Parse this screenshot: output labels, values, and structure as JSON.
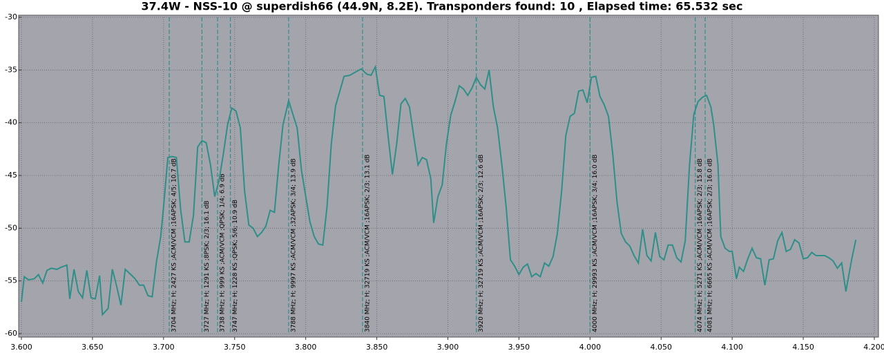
{
  "chart_data": {
    "type": "line",
    "title": "37.4W - NSS-10  @ superdish66 (44.9N, 8.2E). Transponders found: 10 , Elapsed time: 65.532 sec",
    "x": [
      3.6,
      3.602,
      3.605,
      3.609,
      3.612,
      3.615,
      3.618,
      3.621,
      3.625,
      3.628,
      3.632,
      3.634,
      3.637,
      3.64,
      3.643,
      3.646,
      3.649,
      3.652,
      3.655,
      3.657,
      3.661,
      3.664,
      3.667,
      3.67,
      3.673,
      3.677,
      3.68,
      3.683,
      3.686,
      3.689,
      3.692,
      3.695,
      3.698,
      3.7,
      3.703,
      3.706,
      3.709,
      3.712,
      3.715,
      3.718,
      3.721,
      3.724,
      3.727,
      3.73,
      3.733,
      3.736,
      3.739,
      3.742,
      3.745,
      3.748,
      3.751,
      3.754,
      3.757,
      3.76,
      3.763,
      3.766,
      3.769,
      3.772,
      3.775,
      3.778,
      3.781,
      3.784,
      3.788,
      3.791,
      3.794,
      3.797,
      3.8,
      3.803,
      3.806,
      3.809,
      3.812,
      3.815,
      3.818,
      3.821,
      3.824,
      3.827,
      3.831,
      3.835,
      3.839,
      3.843,
      3.846,
      3.849,
      3.852,
      3.855,
      3.858,
      3.861,
      3.864,
      3.867,
      3.87,
      3.873,
      3.876,
      3.879,
      3.882,
      3.885,
      3.888,
      3.89,
      3.893,
      3.896,
      3.899,
      3.902,
      3.905,
      3.908,
      3.911,
      3.914,
      3.917,
      3.92,
      3.923,
      3.926,
      3.929,
      3.932,
      3.935,
      3.938,
      3.941,
      3.944,
      3.947,
      3.95,
      3.953,
      3.956,
      3.959,
      3.962,
      3.965,
      3.968,
      3.971,
      3.974,
      3.977,
      3.98,
      3.983,
      3.986,
      3.989,
      3.992,
      3.995,
      3.998,
      4.001,
      4.004,
      4.007,
      4.01,
      4.013,
      4.016,
      4.019,
      4.022,
      4.025,
      4.028,
      4.031,
      4.034,
      4.037,
      4.04,
      4.043,
      4.046,
      4.049,
      4.052,
      4.055,
      4.058,
      4.061,
      4.064,
      4.067,
      4.07,
      4.073,
      4.076,
      4.079,
      4.082,
      4.085,
      4.087,
      4.09,
      4.092,
      4.095,
      4.098,
      4.1,
      4.103,
      4.105,
      4.108,
      4.111,
      4.114,
      4.117,
      4.12,
      4.123,
      4.126,
      4.129,
      4.132,
      4.135,
      4.138,
      4.141,
      4.144,
      4.147,
      4.15,
      4.153,
      4.156,
      4.159,
      4.162,
      4.165,
      4.168,
      4.171,
      4.174,
      4.177,
      4.18,
      4.184,
      4.187
    ],
    "series": [
      {
        "color": "#2e8f88",
        "values": [
          -57.0,
          -54.6,
          -54.9,
          -54.8,
          -54.4,
          -55.2,
          -54.0,
          -53.8,
          -53.9,
          -53.7,
          -53.5,
          -56.7,
          -53.9,
          -56.0,
          -56.6,
          -54.0,
          -56.6,
          -56.7,
          -54.5,
          -58.2,
          -57.6,
          -53.9,
          -55.5,
          -57.3,
          -53.9,
          -54.4,
          -54.8,
          -55.4,
          -55.4,
          -56.4,
          -56.5,
          -53.2,
          -50.8,
          -48.0,
          -43.3,
          -43.2,
          -43.3,
          -48.2,
          -51.3,
          -51.3,
          -48.8,
          -42.3,
          -41.7,
          -41.9,
          -44.0,
          -47.0,
          -45.5,
          -43.0,
          -40.2,
          -38.6,
          -38.9,
          -40.5,
          -46.5,
          -49.7,
          -50.0,
          -50.8,
          -50.4,
          -49.8,
          -48.3,
          -48.5,
          -44.0,
          -40.2,
          -37.9,
          -39.2,
          -40.5,
          -44.5,
          -47.0,
          -49.4,
          -50.8,
          -51.5,
          -51.6,
          -48.0,
          -42.0,
          -38.4,
          -37.0,
          -35.6,
          -35.5,
          -35.2,
          -34.9,
          -35.4,
          -35.5,
          -34.7,
          -37.4,
          -37.5,
          -41.3,
          -44.9,
          -42.0,
          -38.2,
          -37.7,
          -38.5,
          -41.3,
          -44.0,
          -43.3,
          -43.5,
          -45.3,
          -49.5,
          -47.0,
          -45.9,
          -42.0,
          -39.3,
          -38.0,
          -36.5,
          -36.8,
          -37.4,
          -36.7,
          -35.7,
          -36.4,
          -36.8,
          -35.0,
          -38.5,
          -40.5,
          -44.0,
          -48.0,
          -53.0,
          -53.6,
          -54.4,
          -53.7,
          -53.4,
          -54.6,
          -54.3,
          -54.6,
          -53.3,
          -53.6,
          -52.7,
          -50.5,
          -46.5,
          -41.2,
          -39.4,
          -39.1,
          -37.0,
          -36.9,
          -38.1,
          -35.7,
          -35.6,
          -37.5,
          -38.3,
          -39.4,
          -43.0,
          -47.5,
          -50.5,
          -51.3,
          -51.7,
          -52.6,
          -53.3,
          -50.1,
          -52.6,
          -53.1,
          -50.4,
          -52.7,
          -53.0,
          -51.6,
          -51.6,
          -52.8,
          -53.2,
          -51.2,
          -44.0,
          -39.2,
          -38.0,
          -37.6,
          -37.4,
          -38.5,
          -40.2,
          -44.0,
          -50.8,
          -51.9,
          -52.2,
          -52.2,
          -54.8,
          -53.7,
          -54.1,
          -52.9,
          -51.9,
          -52.8,
          -52.9,
          -55.4,
          -53.0,
          -52.9,
          -51.2,
          -50.4,
          -52.2,
          -52.0,
          -51.1,
          -51.4,
          -52.9,
          -52.8,
          -52.3,
          -52.6,
          -52.6,
          -52.6,
          -52.8,
          -53.1,
          -53.8,
          -53.3,
          -56.0,
          -53.0,
          -51.1
        ]
      }
    ],
    "xlim": [
      3.6,
      4.2
    ],
    "ylim": [
      -60,
      -30
    ],
    "xticks": [
      {
        "value": 3.6,
        "label": "3.600"
      },
      {
        "value": 3.65,
        "label": "3.650"
      },
      {
        "value": 3.7,
        "label": "3.700"
      },
      {
        "value": 3.75,
        "label": "3.750"
      },
      {
        "value": 3.8,
        "label": "3.800"
      },
      {
        "value": 3.85,
        "label": "3.850"
      },
      {
        "value": 3.9,
        "label": "3.900"
      },
      {
        "value": 3.95,
        "label": "3.950"
      },
      {
        "value": 4.0,
        "label": "4.000"
      },
      {
        "value": 4.05,
        "label": "4.050"
      },
      {
        "value": 4.1,
        "label": "4.100"
      },
      {
        "value": 4.15,
        "label": "4.150"
      },
      {
        "value": 4.2,
        "label": "4.200"
      }
    ],
    "yticks": [
      -30,
      -35,
      -40,
      -45,
      -50,
      -55,
      -60
    ],
    "grid": true,
    "markers": [
      {
        "x": 3.704,
        "label": "3704 MHz; H; 2427 KS ;ACM/VCM ;16APSK; 4/5; 10.7 dB"
      },
      {
        "x": 3.727,
        "label": "3727 MHz; H; 1291 KS ;8PSK; 2/3; 16.1 dB"
      },
      {
        "x": 3.738,
        "label": "3738 MHz; H; 999 KS ;ACM/VCM ;QPSK; 1/4; 6.9 dB"
      },
      {
        "x": 3.747,
        "label": "3747 MHz; H; 1228 KS ;QPSK; 5/6; 10.9 dB"
      },
      {
        "x": 3.788,
        "label": "3788 MHz; H; 9997 KS ;ACM/VCM ;32APSK; 3/4; 13.9 dB"
      },
      {
        "x": 3.84,
        "label": "3840 MHz; H; 32719 KS ;ACM/VCM ;16APSK; 2/3; 13.1 dB"
      },
      {
        "x": 3.92,
        "label": "3920 MHz; H; 32719 KS ;ACM/VCM ;16APSK; 2/3; 12.6 dB"
      },
      {
        "x": 4.0,
        "label": "4000 MHz; H; 29993 KS ;ACM/VCM ;16APSK; 3/4; 16.0 dB"
      },
      {
        "x": 4.074,
        "label": "4074 MHz; H; 5271 KS ;ACM/VCM ;16APSK; 2/3; 15.8 dB"
      },
      {
        "x": 4.081,
        "label": "4081 MHz; H; 6665 KS ;ACM/VCM ;16APSK; 2/3; 16.0 dB"
      }
    ]
  }
}
